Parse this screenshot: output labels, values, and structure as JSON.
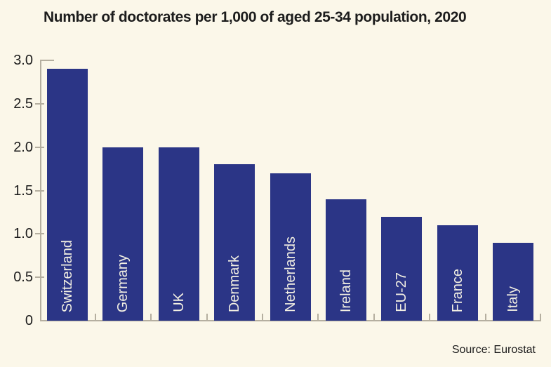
{
  "title": "Number of doctorates per 1,000 of aged 25-34 population, 2020",
  "source": "Source: Eurostat",
  "colors": {
    "background": "#fbf7e9",
    "bar": "#2b3586",
    "axis": "#b5afa0",
    "text": "#1c1c1c",
    "bar_label": "#f2efe2"
  },
  "chart_data": {
    "type": "bar",
    "categories": [
      "Switzerland",
      "Germany",
      "UK",
      "Denmark",
      "Netherlands",
      "Ireland",
      "EU-27",
      "France",
      "Italy"
    ],
    "values": [
      2.9,
      2.0,
      2.0,
      1.8,
      1.7,
      1.4,
      1.2,
      1.1,
      0.9
    ],
    "title": "Number of doctorates per 1,000 of aged 25-34 population, 2020",
    "xlabel": "",
    "ylabel": "",
    "ylim": [
      0,
      3.0
    ],
    "yticks": [
      0,
      0.5,
      1.0,
      1.5,
      2.0,
      2.5,
      3.0
    ],
    "ytick_labels": [
      "0",
      "0.5",
      "1.0",
      "1.5",
      "2.0",
      "2.5",
      "3.0"
    ],
    "grid": false,
    "legend": "none",
    "bar_label_position": "inside-bottom-rotated",
    "source": "Source: Eurostat"
  }
}
